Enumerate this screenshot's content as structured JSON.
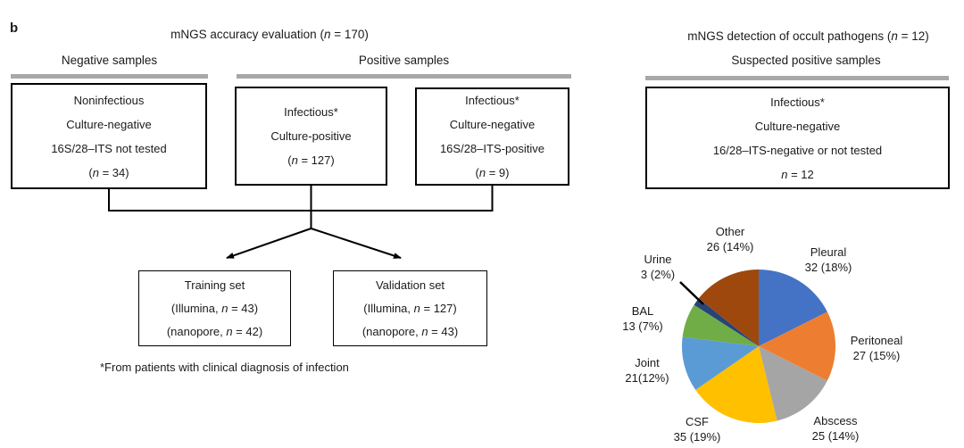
{
  "panel_label": "b",
  "colors": {
    "section_bar": "#A8A8A8",
    "box_border": "#000000",
    "text": "#1B1B1B",
    "background": "#FFFFFF"
  },
  "left_section": {
    "title": "mNGS accuracy evaluation (_n_ = 170)",
    "negative_group_label": "Negative samples",
    "positive_group_label": "Positive samples",
    "boxes": {
      "noninfectious": {
        "lines": [
          "Noninfectious",
          "Culture-negative",
          "16S/28–ITS not tested",
          "(_n_ = 34)"
        ]
      },
      "culture_positive": {
        "lines": [
          "Infectious*",
          "Culture-positive",
          "(_n_ = 127)"
        ]
      },
      "its_positive": {
        "lines": [
          "Infectious*",
          "Culture-negative",
          "16S/28–ITS-positive",
          "(_n_ = 9)"
        ]
      },
      "training": {
        "lines": [
          "Training set",
          "(Illumina, _n_ = 43)",
          "(nanopore, _n_ = 42)"
        ]
      },
      "validation": {
        "lines": [
          "Validation set",
          "(Illumina, _n_ = 127)",
          "(nanopore, _n_ = 43)"
        ]
      }
    },
    "footnote": "*From patients with clinical diagnosis of infection"
  },
  "right_section": {
    "title": "mNGS detection of occult pathogens (_n_ = 12)",
    "subtitle": "Suspected positive samples",
    "box": {
      "lines": [
        "Infectious*",
        "Culture-negative",
        "16/28–ITS-negative or not tested",
        "_n_ = 12"
      ]
    }
  },
  "chart_data": {
    "type": "pie",
    "title": "",
    "rotation": "clockwise",
    "start_angle": "12-oclock",
    "values_total": 182,
    "slices": [
      {
        "label": "Pleural",
        "value": 32,
        "display": "32 (18%)",
        "color": "#4472C4"
      },
      {
        "label": "Peritoneal",
        "value": 27,
        "display": "27 (15%)",
        "color": "#ED7D31"
      },
      {
        "label": "Abscess",
        "value": 25,
        "display": "25 (14%)",
        "color": "#A5A5A5"
      },
      {
        "label": "CSF",
        "value": 35,
        "display": "35 (19%)",
        "color": "#FFC000"
      },
      {
        "label": "Joint",
        "value": 21,
        "display": "21(12%)",
        "color": "#5B9BD5"
      },
      {
        "label": "BAL",
        "value": 13,
        "display": "13 (7%)",
        "color": "#70AD47"
      },
      {
        "label": "Urine",
        "value": 3,
        "display": "3 (2%)",
        "color": "#264478"
      },
      {
        "label": "Other",
        "value": 26,
        "display": "26 (14%)",
        "color": "#9E480E"
      }
    ]
  }
}
